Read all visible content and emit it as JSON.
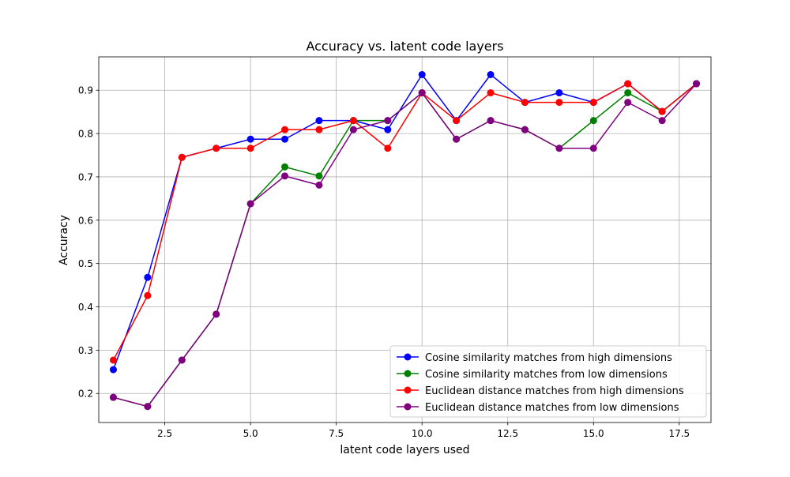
{
  "chart_data": {
    "type": "line",
    "title": "Accuracy vs. latent code layers",
    "xlabel": "latent code layers used",
    "ylabel": "Accuracy",
    "xlim": [
      0.575,
      18.425
    ],
    "ylim": [
      0.133,
      0.977
    ],
    "xticks": [
      2.5,
      5.0,
      7.5,
      10.0,
      12.5,
      15.0,
      17.5
    ],
    "yticks": [
      0.2,
      0.3,
      0.4,
      0.5,
      0.6,
      0.7,
      0.8,
      0.9
    ],
    "xtick_labels": [
      "2.5",
      "5.0",
      "7.5",
      "10.0",
      "12.5",
      "15.0",
      "17.5"
    ],
    "ytick_labels": [
      "0.2",
      "0.3",
      "0.4",
      "0.5",
      "0.6",
      "0.7",
      "0.8",
      "0.9"
    ],
    "grid": true,
    "legend_position": "lower-right",
    "x": [
      1,
      2,
      3,
      4,
      5,
      6,
      7,
      8,
      9,
      10,
      11,
      12,
      13,
      14,
      15,
      16,
      17,
      18
    ],
    "series": [
      {
        "name": "Cosine similarity matches from high dimensions",
        "color": "#0000ff",
        "values": [
          0.255,
          0.468,
          0.745,
          0.766,
          0.787,
          0.787,
          0.83,
          0.83,
          0.809,
          0.936,
          0.83,
          0.936,
          0.872,
          0.894,
          0.872,
          0.915,
          0.851,
          0.915
        ]
      },
      {
        "name": "Cosine similarity matches from low dimensions",
        "color": "#008000",
        "values": [
          0.191,
          0.17,
          0.277,
          0.383,
          0.638,
          0.723,
          0.702,
          0.83,
          0.83,
          0.894,
          0.787,
          0.83,
          0.809,
          0.766,
          0.83,
          0.894,
          0.851,
          0.915
        ]
      },
      {
        "name": "Euclidean distance matches from high dimensions",
        "color": "#ff0000",
        "values": [
          0.277,
          0.426,
          0.745,
          0.766,
          0.766,
          0.809,
          0.809,
          0.83,
          0.766,
          0.894,
          0.83,
          0.894,
          0.872,
          0.872,
          0.872,
          0.915,
          0.851,
          0.915
        ]
      },
      {
        "name": "Euclidean distance matches from low dimensions",
        "color": "#800080",
        "values": [
          0.191,
          0.17,
          0.277,
          0.383,
          0.638,
          0.702,
          0.681,
          0.809,
          0.83,
          0.894,
          0.787,
          0.83,
          0.809,
          0.766,
          0.766,
          0.872,
          0.83,
          0.915
        ]
      }
    ]
  }
}
